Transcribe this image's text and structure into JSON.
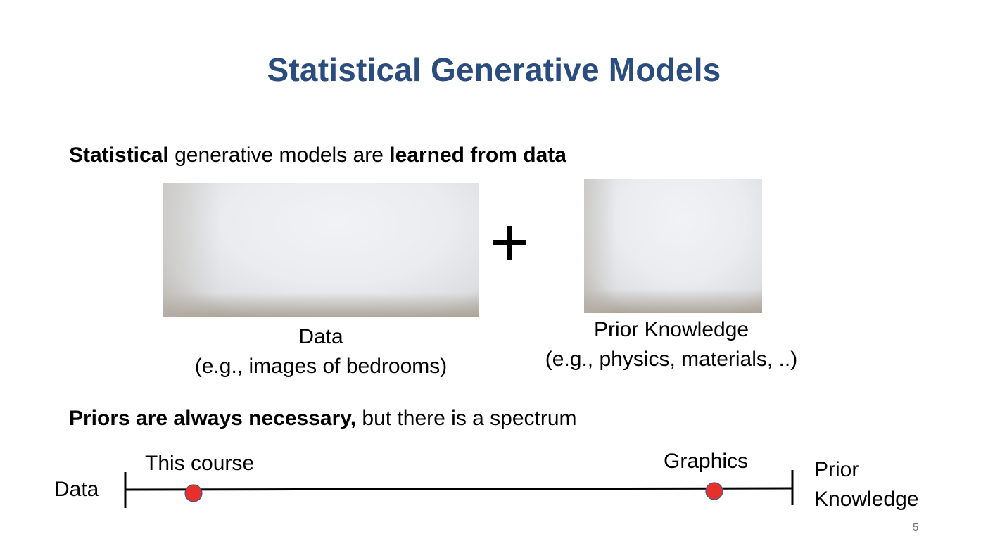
{
  "slide": {
    "title": "Statistical Generative Models",
    "intro": {
      "bold_start": "Statistical",
      "middle": " generative models are ",
      "bold_end": "learned from data"
    },
    "data_caption_line1": "Data",
    "data_caption_line2": "(e.g., images of bedrooms)",
    "prior_caption_line1": "Prior Knowledge",
    "prior_caption_line2": "(e.g., physics, materials, ..)",
    "plus_symbol": "+",
    "priors_line": {
      "bold": "Priors are always necessary,",
      "rest": " but there is a spectrum"
    },
    "spectrum": {
      "left_label": "Data",
      "right_label_line1": "Prior",
      "right_label_line2": "Knowledge",
      "point_this_course": "This course",
      "point_graphics": "Graphics",
      "dot_color": "#e8302a"
    },
    "page_number": "5"
  }
}
